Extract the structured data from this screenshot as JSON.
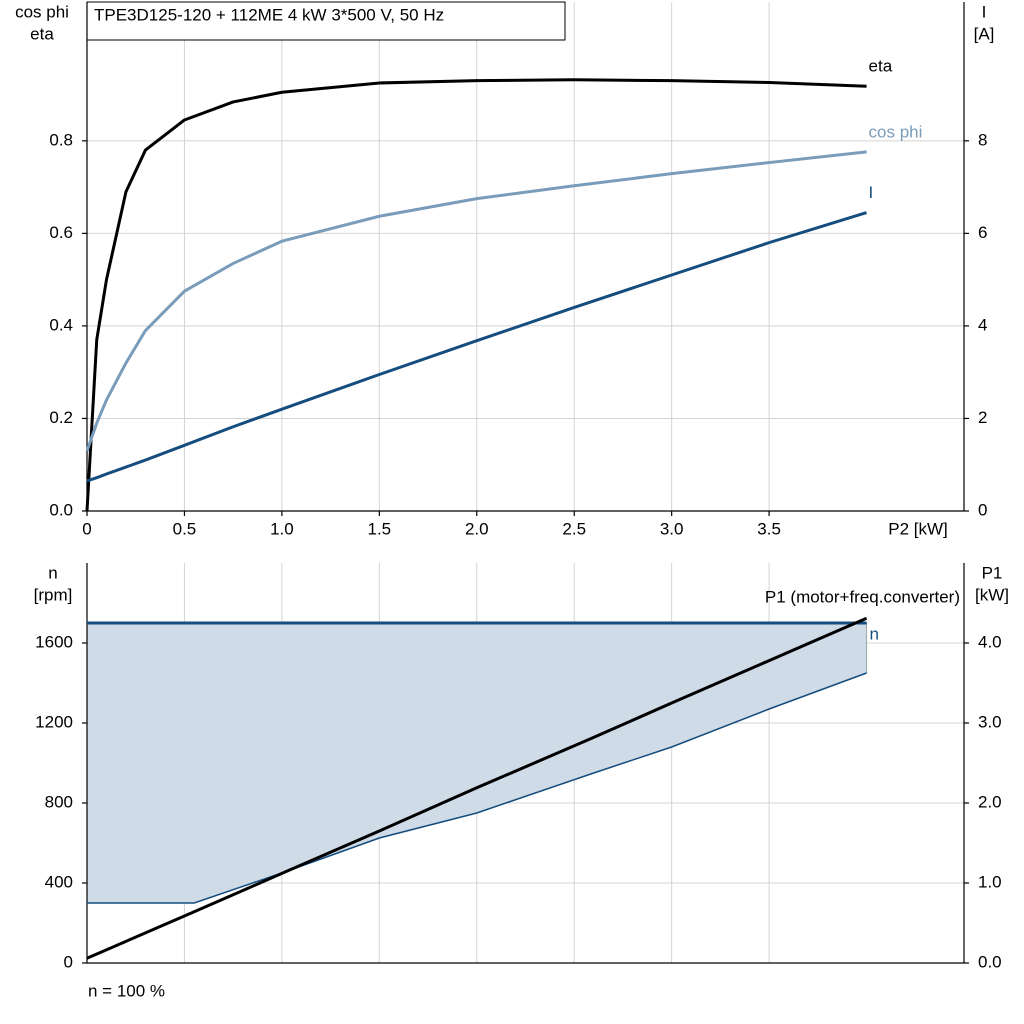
{
  "chart_data": [
    {
      "type": "line",
      "title": "TPE3D125-120 + 112ME   4 kW   3*500 V, 50 Hz",
      "ylabel": [
        "cos phi",
        "eta"
      ],
      "y2label": [
        "I",
        "[A]"
      ],
      "xlabel": "P2 [kW]",
      "x": [
        0,
        0.05,
        0.1,
        0.2,
        0.3,
        0.5,
        0.75,
        1,
        1.5,
        2,
        2.5,
        3,
        3.5,
        4
      ],
      "xlim": [
        0,
        4.5
      ],
      "xticks": [
        0,
        0.5,
        {
          "value": 1,
          "label": "1.0"
        },
        1.5,
        {
          "value": 2,
          "label": "2.0"
        },
        2.5,
        {
          "value": 3,
          "label": "3.0"
        },
        3.5
      ],
      "ylim": [
        0,
        1.1
      ],
      "yticks": [
        {
          "value": 0,
          "label": "0.0"
        },
        0.2,
        0.4,
        0.6,
        0.8
      ],
      "y2lim": [
        0,
        11
      ],
      "y2ticks": [
        0,
        2,
        4,
        6,
        8
      ],
      "grid": true,
      "series": [
        {
          "name": "eta",
          "color": "#000000",
          "values": [
            0,
            0.37,
            0.5,
            0.69,
            0.78,
            0.845,
            0.884,
            0.905,
            0.925,
            0.93,
            0.932,
            0.93,
            0.926,
            0.918
          ]
        },
        {
          "name": "cos phi",
          "color": "#7a9cbb",
          "values": [
            0.13,
            0.19,
            0.24,
            0.32,
            0.39,
            0.475,
            0.535,
            0.583,
            0.637,
            0.675,
            0.703,
            0.729,
            0.753,
            0.776
          ]
        },
        {
          "name": "I",
          "color": "#154d7e",
          "axis": "y2",
          "values": [
            0.65,
            0.72,
            0.8,
            0.95,
            1.1,
            1.42,
            1.82,
            2.2,
            2.95,
            3.68,
            4.4,
            5.1,
            5.8,
            6.45
          ]
        }
      ]
    },
    {
      "type": "line",
      "ylabel": [
        "n",
        "[rpm]"
      ],
      "y2label": [
        "P1",
        "[kW]"
      ],
      "note": "n = 100 %",
      "x": [
        0,
        0.55,
        1,
        1.5,
        2,
        2.6,
        3,
        3.5,
        4
      ],
      "xlim": [
        0,
        4.5
      ],
      "ylim": [
        0,
        2000
      ],
      "yticks": [
        0,
        400,
        800,
        1200,
        1600
      ],
      "y2lim": [
        0,
        5
      ],
      "y2ticks": [
        {
          "value": 0,
          "label": "0.0"
        },
        {
          "value": 1,
          "label": "1.0"
        },
        {
          "value": 2,
          "label": "2.0"
        },
        {
          "value": 3,
          "label": "3.0"
        },
        {
          "value": 4,
          "label": "4.0"
        }
      ],
      "grid": true,
      "series": [
        {
          "name": "n",
          "color": "#154d7e",
          "fill": "#cfdbe6",
          "values": [
            1700,
            1700,
            1700,
            1700,
            1700,
            1700,
            1700,
            1700,
            1700
          ],
          "lower": [
            300,
            300,
            450,
            625,
            750,
            950,
            1080,
            1270,
            1450
          ]
        },
        {
          "name": "P1 (motor+freq.converter)",
          "color": "#000000",
          "axis": "y2",
          "values": [
            0.06,
            0.64,
            1.12,
            1.65,
            2.19,
            2.82,
            3.25,
            3.78,
            4.31
          ]
        }
      ]
    }
  ]
}
